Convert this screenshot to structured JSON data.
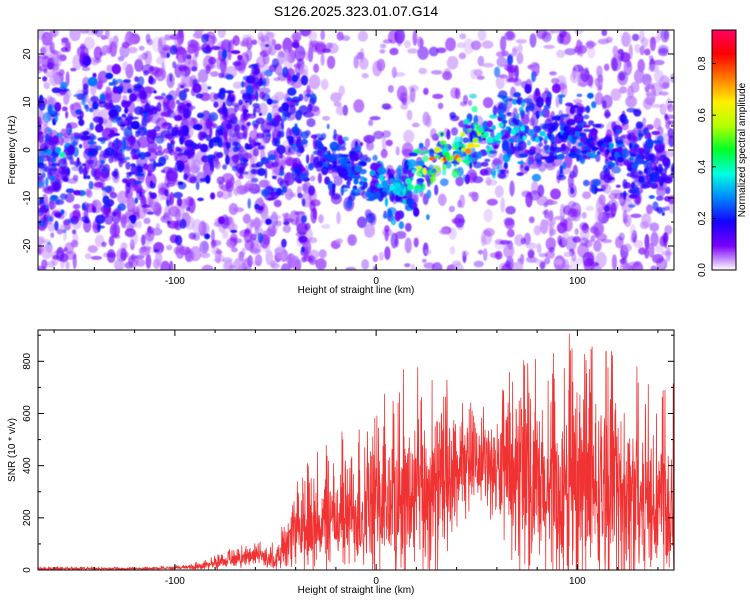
{
  "title": "S126.2025.323.01.07.G14",
  "chart_data": [
    {
      "type": "heatmap",
      "name": "spectrogram",
      "xlabel": "Height of straight line (km)",
      "ylabel": "Frequency (Hz)",
      "xlim": [
        -168,
        148
      ],
      "ylim": [
        -25,
        25
      ],
      "xticks": [
        -100,
        0,
        100
      ],
      "yticks": [
        -20,
        -10,
        0,
        10,
        20
      ],
      "colorbar": {
        "label": "Normalized spectral amplitude",
        "range": [
          0,
          0.93
        ],
        "ticks": [
          "0.0",
          "0.2",
          "0.4",
          "0.6",
          "0.8"
        ],
        "tick_values": [
          0.0,
          0.2,
          0.4,
          0.6,
          0.8
        ],
        "colors": [
          "#ffffff",
          "#7a00ff",
          "#1400ff",
          "#0087ff",
          "#00ffe0",
          "#00ff2a",
          "#b4ff00",
          "#fff000",
          "#ff7a00",
          "#ff0000",
          "#ff0064"
        ]
      },
      "ridge": {
        "description": "bright signal ridge",
        "x": [
          -155,
          -100,
          -60,
          -20,
          0,
          10,
          20,
          30,
          40,
          50,
          60,
          80,
          100,
          120,
          140
        ],
        "y": [
          -1,
          3,
          5,
          -3,
          -7,
          -9,
          -6,
          -2,
          0,
          2,
          4,
          4,
          2,
          -1,
          -4
        ],
        "peak_amplitude": [
          0.35,
          0.2,
          0.25,
          0.3,
          0.35,
          0.5,
          0.6,
          0.85,
          0.8,
          0.7,
          0.45,
          0.35,
          0.3,
          0.3,
          0.25
        ]
      }
    },
    {
      "type": "line",
      "name": "snr",
      "xlabel": "Height of straight line (km)",
      "ylabel": "SNR (10 * v/v)",
      "xlim": [
        -168,
        148
      ],
      "ylim": [
        0,
        920
      ],
      "xticks": [
        -100,
        0,
        100
      ],
      "yticks": [
        0,
        200,
        400,
        600,
        800
      ],
      "color": "#f03232",
      "envelope": {
        "x": [
          -168,
          -150,
          -120,
          -100,
          -90,
          -80,
          -70,
          -60,
          -50,
          -45,
          -40,
          -30,
          -20,
          -10,
          0,
          10,
          20,
          30,
          40,
          50,
          60,
          70,
          80,
          90,
          100,
          110,
          120,
          130,
          140,
          148
        ],
        "base": [
          5,
          5,
          5,
          8,
          12,
          25,
          40,
          55,
          40,
          80,
          130,
          170,
          200,
          220,
          240,
          260,
          280,
          300,
          360,
          420,
          380,
          320,
          280,
          260,
          280,
          300,
          290,
          280,
          260,
          250
        ],
        "spread": [
          6,
          5,
          4,
          6,
          10,
          20,
          30,
          35,
          40,
          80,
          140,
          180,
          200,
          230,
          280,
          310,
          330,
          320,
          220,
          120,
          200,
          300,
          340,
          360,
          380,
          360,
          340,
          330,
          320,
          300
        ]
      },
      "peak": {
        "x": 96,
        "y": 905
      }
    }
  ]
}
